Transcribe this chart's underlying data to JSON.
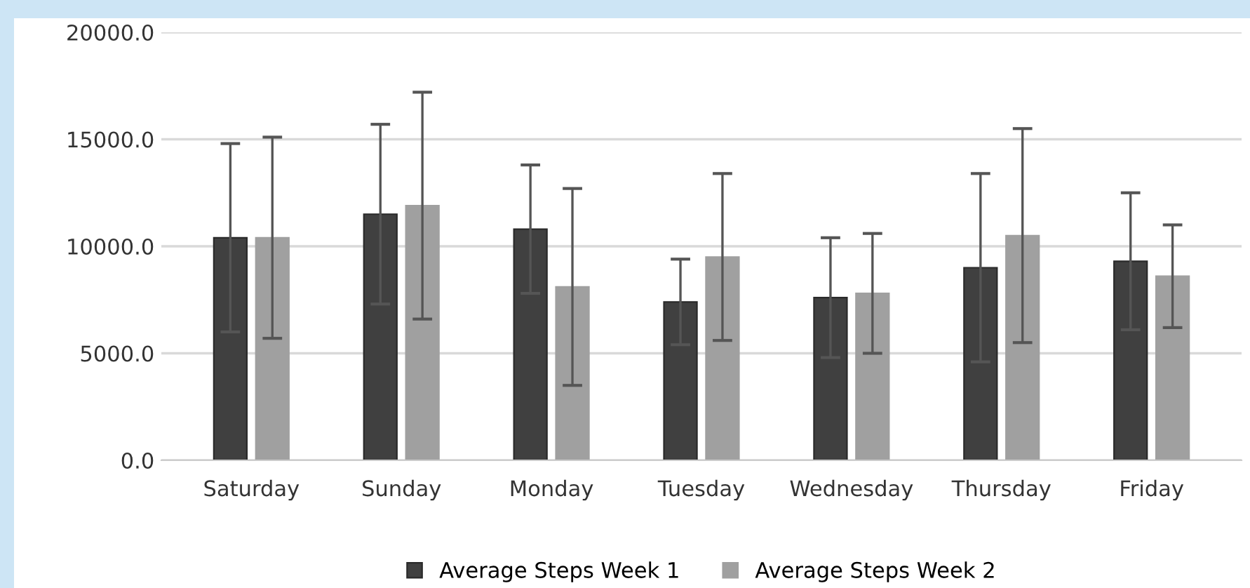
{
  "chart_data": {
    "type": "bar",
    "categories": [
      "Saturday",
      "Sunday",
      "Monday",
      "Tuesday",
      "Wednesday",
      "Thursday",
      "Friday"
    ],
    "series": [
      {
        "name": "Average Steps Week 1",
        "color": "#404040",
        "values": [
          10400,
          11500,
          10800,
          7400,
          7600,
          9000,
          9300
        ],
        "errors": [
          4400,
          4200,
          3000,
          2000,
          2800,
          4400,
          3200
        ]
      },
      {
        "name": "Average Steps Week 2",
        "color": "#a0a0a0",
        "values": [
          10400,
          11900,
          8100,
          9500,
          7800,
          10500,
          8600
        ],
        "errors": [
          4700,
          5300,
          4600,
          3900,
          2800,
          5000,
          2400
        ]
      }
    ],
    "ylim": [
      0,
      20000
    ],
    "yticks": [
      {
        "value": 0,
        "label": "0.0"
      },
      {
        "value": 5000,
        "label": "5000.0"
      },
      {
        "value": 10000,
        "label": "10000.0"
      },
      {
        "value": 15000,
        "label": "15000.0"
      },
      {
        "value": 20000,
        "label": "20000.0"
      }
    ],
    "grid": "y",
    "legend": "bottom"
  }
}
